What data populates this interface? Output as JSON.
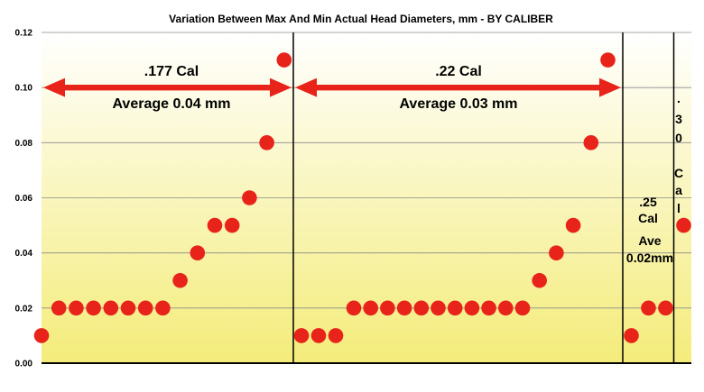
{
  "chart_data": {
    "type": "scatter",
    "title": "Variation Between Max And Min Actual Head Diameters, mm - BY CALIBER",
    "ylim": [
      0,
      0.12
    ],
    "yticks": [
      "0.00",
      "0.02",
      "0.04",
      "0.06",
      "0.08",
      "0.10",
      "0.12"
    ],
    "grid": true,
    "marker_color": "#e8231a",
    "arrow_color": "#e8231a",
    "background_gradient": [
      "#ffffff",
      "#f4ec7a"
    ],
    "groups": [
      {
        "name": ".177 Cal",
        "annotation": [
          "Average 0.04 mm"
        ],
        "values": [
          0.01,
          0.02,
          0.02,
          0.02,
          0.02,
          0.02,
          0.02,
          0.02,
          0.03,
          0.04,
          0.05,
          0.05,
          0.06,
          0.08,
          0.11
        ]
      },
      {
        "name": ".22 Cal",
        "annotation": [
          "Average 0.03 mm"
        ],
        "values": [
          0.01,
          0.01,
          0.01,
          0.02,
          0.02,
          0.02,
          0.02,
          0.02,
          0.02,
          0.02,
          0.02,
          0.02,
          0.02,
          0.02,
          0.03,
          0.04,
          0.05,
          0.08,
          0.11
        ]
      },
      {
        "name": ".25 Cal",
        "label_lines": [
          ".25",
          "Cal"
        ],
        "annotation": [
          "Ave",
          "0.02mm"
        ],
        "values": [
          0.01,
          0.02,
          0.02
        ]
      },
      {
        "name": ".30 Cal",
        "label_chars": [
          ".",
          "3",
          "0",
          "",
          "C",
          "a",
          "l"
        ],
        "values": [
          0.05
        ]
      }
    ]
  }
}
